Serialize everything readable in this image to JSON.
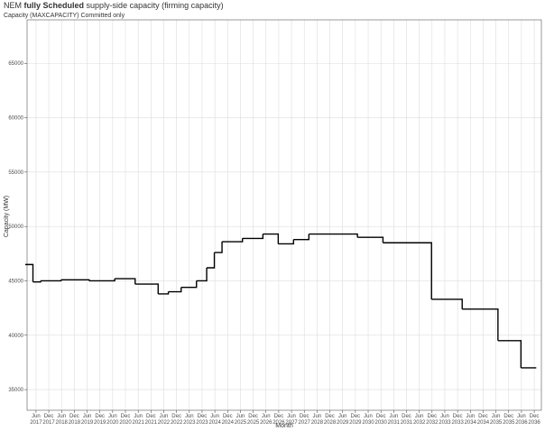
{
  "chart_data": {
    "type": "step",
    "title": [
      "NEM",
      "fully Scheduled",
      "supply-side capacity (firming capacity)"
    ],
    "subtitle": "Capacity (MAXCAPACITY) Committed only",
    "y_label": "Capacity (MW)",
    "x_label": "Month",
    "x": [
      2017.0,
      2017.3,
      2017.6,
      2018.4,
      2019.5,
      2020.5,
      2021.3,
      2022.2,
      2022.6,
      2023.1,
      2023.7,
      2024.1,
      2024.4,
      2024.7,
      2025.5,
      2026.3,
      2026.9,
      2027.5,
      2028.1,
      2030.0,
      2031.0,
      2032.9,
      2034.1,
      2035.5,
      2036.4,
      2037.0
    ],
    "values": [
      46500,
      44900,
      45000,
      45100,
      45000,
      45200,
      44700,
      43800,
      44000,
      44400,
      45000,
      46200,
      47600,
      48600,
      48900,
      49300,
      48400,
      48800,
      49300,
      49000,
      48500,
      43300,
      42400,
      39500,
      37000,
      37000
    ],
    "color": "#000000",
    "xlim": [
      2017.07,
      2037.2
    ],
    "ylim": [
      33100,
      69000
    ],
    "yticks": [
      35000,
      40000,
      45000,
      50000,
      55000,
      60000,
      65000
    ],
    "xticks": [
      {
        "value": 2017.42,
        "label": "Jun 2017"
      },
      {
        "value": 2017.92,
        "label": "Dec 2017"
      },
      {
        "value": 2018.42,
        "label": "Jun 2018"
      },
      {
        "value": 2018.92,
        "label": "Dec 2018"
      },
      {
        "value": 2019.42,
        "label": "Jun 2019"
      },
      {
        "value": 2019.92,
        "label": "Dec 2019"
      },
      {
        "value": 2020.42,
        "label": "Jun 2020"
      },
      {
        "value": 2020.92,
        "label": "Dec 2020"
      },
      {
        "value": 2021.42,
        "label": "Jun 2021"
      },
      {
        "value": 2021.92,
        "label": "Dec 2021"
      },
      {
        "value": 2022.42,
        "label": "Jun 2022"
      },
      {
        "value": 2022.92,
        "label": "Dec 2022"
      },
      {
        "value": 2023.42,
        "label": "Jun 2023"
      },
      {
        "value": 2023.92,
        "label": "Dec 2023"
      },
      {
        "value": 2024.42,
        "label": "Jun 2024"
      },
      {
        "value": 2024.92,
        "label": "Dec 2024"
      },
      {
        "value": 2025.42,
        "label": "Jun 2025"
      },
      {
        "value": 2025.92,
        "label": "Dec 2025"
      },
      {
        "value": 2026.42,
        "label": "Jun 2026"
      },
      {
        "value": 2026.92,
        "label": "Dec 2026"
      },
      {
        "value": 2027.42,
        "label": "Jun 2027"
      },
      {
        "value": 2027.92,
        "label": "Dec 2027"
      },
      {
        "value": 2028.42,
        "label": "Jun 2028"
      },
      {
        "value": 2028.92,
        "label": "Dec 2028"
      },
      {
        "value": 2029.42,
        "label": "Jun 2029"
      },
      {
        "value": 2029.92,
        "label": "Dec 2029"
      },
      {
        "value": 2030.42,
        "label": "Jun 2030"
      },
      {
        "value": 2030.92,
        "label": "Dec 2030"
      },
      {
        "value": 2031.42,
        "label": "Jun 2031"
      },
      {
        "value": 2031.92,
        "label": "Dec 2031"
      },
      {
        "value": 2032.42,
        "label": "Jun 2032"
      },
      {
        "value": 2032.92,
        "label": "Dec 2032"
      },
      {
        "value": 2033.42,
        "label": "Jun 2033"
      },
      {
        "value": 2033.92,
        "label": "Dec 2033"
      },
      {
        "value": 2034.42,
        "label": "Jun 2034"
      },
      {
        "value": 2034.92,
        "label": "Dec 2034"
      },
      {
        "value": 2035.42,
        "label": "Jun 2035"
      },
      {
        "value": 2035.92,
        "label": "Dec 2035"
      },
      {
        "value": 2036.42,
        "label": "Jun 2036"
      },
      {
        "value": 2036.92,
        "label": "Dec 2036"
      }
    ],
    "grid": true
  }
}
